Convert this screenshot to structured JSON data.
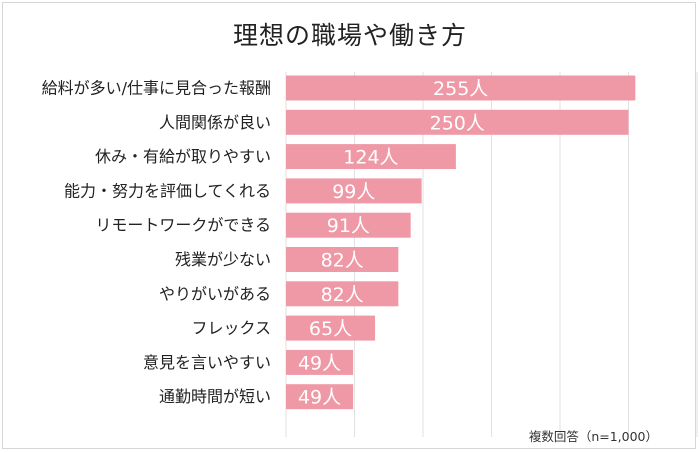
{
  "chart_data": {
    "type": "bar",
    "orientation": "horizontal",
    "title": "理想の職場や働き方",
    "note": "複数回答（n=1,000）",
    "unit": "人",
    "categories": [
      "給料が多い/仕事に見合った報酬",
      "人間関係が良い",
      "休み・有給が取りやすい",
      "能力・努力を評価してくれる",
      "リモートワークができる",
      "残業が少ない",
      "やりがいがある",
      "フレックス",
      "意見を言いやすい",
      "通勤時間が短い"
    ],
    "values": [
      255,
      250,
      124,
      99,
      91,
      82,
      82,
      65,
      49,
      49
    ],
    "labels": [
      "255人",
      "250人",
      "124人",
      "99人",
      "91人",
      "82人",
      "82人",
      "65人",
      "49人",
      "49人"
    ],
    "xlim": [
      0,
      300
    ],
    "grid": true,
    "bar_color": "#ef99a6"
  }
}
